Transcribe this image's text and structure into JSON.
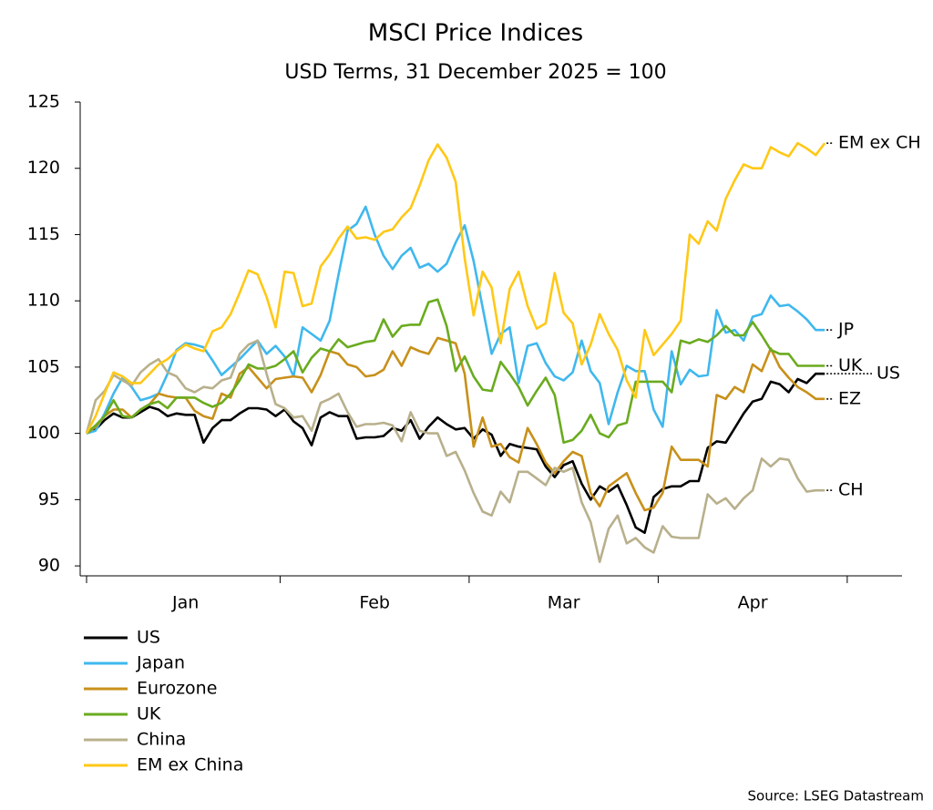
{
  "chart_data": {
    "type": "line",
    "title": "MSCI Price Indices",
    "subtitle": "USD Terms, 31 December 2025 = 100",
    "source": "Source: LSEG Datastream",
    "categories": [
      null,
      null,
      null,
      null,
      null,
      null,
      null,
      null,
      null,
      null,
      null,
      "Jan",
      null,
      null,
      null,
      null,
      null,
      null,
      null,
      null,
      null,
      null,
      null,
      null,
      null,
      null,
      null,
      null,
      null,
      null,
      null,
      null,
      "Feb",
      null,
      null,
      null,
      null,
      null,
      null,
      null,
      null,
      null,
      null,
      null,
      null,
      null,
      null,
      null,
      null,
      null,
      null,
      null,
      null,
      "Mar",
      null,
      null,
      null,
      null,
      null,
      null,
      null,
      null,
      null,
      null,
      null,
      null,
      null,
      null,
      null,
      null,
      null,
      null,
      null,
      null,
      "Apr",
      null,
      null,
      null,
      null,
      null,
      null,
      null,
      null
    ],
    "ylim": [
      89.25,
      125
    ],
    "yticks": [
      90,
      95,
      100,
      105,
      110,
      115,
      120,
      125
    ],
    "grid": false,
    "legend": "bottom-left",
    "series": [
      {
        "name": "US",
        "end_label": "US",
        "color": "#000000",
        "values": [
          100,
          100.3,
          101,
          101.5,
          101.2,
          101.2,
          101.6,
          102,
          101.8,
          101.3,
          101.5,
          101.4,
          101.4,
          99.3,
          100.4,
          101,
          101,
          101.5,
          101.9,
          101.9,
          101.8,
          101.3,
          101.8,
          100.9,
          100.4,
          99.1,
          101.2,
          101.6,
          101.3,
          101.3,
          99.6,
          99.7,
          99.7,
          99.8,
          100.4,
          100.2,
          101,
          99.6,
          100.5,
          101.2,
          100.7,
          100.3,
          100.4,
          99.6,
          100.3,
          99.9,
          98.3,
          99.2,
          99,
          98.9,
          98.8,
          97.5,
          96.7,
          97.6,
          97.9,
          96.2,
          95,
          96,
          95.6,
          96.1,
          94.6,
          92.9,
          92.5,
          95.2,
          95.8,
          96,
          96,
          96.4,
          96.4,
          98.9,
          99.4,
          99.3,
          100.4,
          101.5,
          102.4,
          102.6,
          103.9,
          103.7,
          103.1,
          104.1,
          103.8,
          104.5,
          104.5
        ]
      },
      {
        "name": "Japan",
        "end_label": "JP",
        "color": "#3fb8ee",
        "values": [
          100,
          100.2,
          101.5,
          103,
          104.2,
          103.5,
          102.5,
          102.7,
          103,
          104.5,
          106.3,
          106.8,
          106.7,
          106.5,
          105.5,
          104.4,
          105,
          105.6,
          106.3,
          107,
          106,
          106.6,
          105.8,
          104.3,
          108,
          107.5,
          107,
          108.5,
          112,
          115.3,
          115.8,
          117.1,
          115,
          113.4,
          112.4,
          113.4,
          114,
          112.5,
          112.8,
          112.2,
          112.8,
          114.4,
          115.7,
          113,
          109.5,
          106,
          107.5,
          108,
          103.8,
          106.6,
          106.8,
          105.3,
          104.3,
          104,
          104.6,
          107,
          104.7,
          103.8,
          100.7,
          103.1,
          105.1,
          104.7,
          104.7,
          101.8,
          100.5,
          106.2,
          103.7,
          104.8,
          104.3,
          104.4,
          109.3,
          107.6,
          107.8,
          107,
          108.8,
          109,
          110.4,
          109.6,
          109.7,
          109.2,
          108.6,
          107.8,
          107.8
        ]
      },
      {
        "name": "Eurozone",
        "end_label": "EZ",
        "color": "#c8901a",
        "values": [
          100,
          100.5,
          101.3,
          101.8,
          101.8,
          101.2,
          101.8,
          102.2,
          103,
          102.8,
          102.7,
          102.7,
          101.7,
          101.3,
          101.1,
          103,
          102.7,
          104.5,
          105,
          104.2,
          103.4,
          104.1,
          104.2,
          104.3,
          104.2,
          103.1,
          104.4,
          106.2,
          106,
          105.2,
          105,
          104.3,
          104.4,
          104.8,
          106.2,
          105.1,
          106.5,
          106.2,
          106,
          107.2,
          107,
          106.8,
          104.5,
          99,
          101.2,
          99,
          99.2,
          98.2,
          97.8,
          100.4,
          99.2,
          97.8,
          97,
          97.9,
          98.6,
          98.3,
          95.5,
          94.5,
          96,
          96.5,
          97,
          95.5,
          94.2,
          94.4,
          95.5,
          99,
          98,
          98,
          98,
          97.5,
          102.9,
          102.6,
          103.5,
          103.1,
          105.2,
          104.7,
          106.4,
          105,
          104.2,
          103.5,
          103.1,
          102.6,
          102.6
        ]
      },
      {
        "name": "UK",
        "end_label": "UK",
        "color": "#6aab1f",
        "values": [
          100,
          100.6,
          101.3,
          102.5,
          101.3,
          101.2,
          101.8,
          102.2,
          102.4,
          101.9,
          102.7,
          102.7,
          102.7,
          102.3,
          102,
          102.3,
          103,
          104,
          105.2,
          104.9,
          104.9,
          105.1,
          105.6,
          106.2,
          104.6,
          105.7,
          106.4,
          106.2,
          107.1,
          106.5,
          106.7,
          106.9,
          107,
          108.6,
          107.3,
          108.1,
          108.2,
          108.2,
          109.9,
          110.1,
          108.1,
          104.7,
          105.8,
          104.3,
          103.3,
          103.2,
          105.4,
          104.5,
          103.5,
          102.1,
          103.2,
          104.2,
          102.9,
          99.3,
          99.5,
          100.2,
          101.4,
          100,
          99.7,
          100.6,
          100.8,
          103.9,
          103.9,
          103.9,
          103.9,
          103.1,
          107,
          106.8,
          107.1,
          106.9,
          107.4,
          108.1,
          107.4,
          107.4,
          108.4,
          107.4,
          106.3,
          106,
          106,
          105.1,
          105.1,
          105.1,
          105.1
        ]
      },
      {
        "name": "China",
        "end_label": "CH",
        "color": "#b8b08c",
        "values": [
          100,
          102.5,
          103.2,
          104.4,
          104,
          103.6,
          104.6,
          105.2,
          105.6,
          104.6,
          104.3,
          103.4,
          103.1,
          103.5,
          103.4,
          104,
          104.2,
          106,
          106.7,
          107,
          104.5,
          102.2,
          101.9,
          101.2,
          101.3,
          100.2,
          102.3,
          102.6,
          103,
          101.6,
          100.5,
          100.7,
          100.7,
          100.8,
          100.6,
          99.4,
          101.6,
          100.2,
          100,
          100,
          98.3,
          98.6,
          97.2,
          95.5,
          94.1,
          93.8,
          95.6,
          94.8,
          97.1,
          97.1,
          96.6,
          96.1,
          97.4,
          97.1,
          97.4,
          94.8,
          93.3,
          90.3,
          92.8,
          93.8,
          91.7,
          92.1,
          91.4,
          91,
          93,
          92.2,
          92.1,
          92.1,
          92.1,
          95.4,
          94.7,
          95.1,
          94.3,
          95.1,
          95.7,
          98.1,
          97.5,
          98.1,
          98,
          96.6,
          95.6,
          95.7,
          95.7
        ]
      },
      {
        "name": "EM ex China",
        "end_label": "EM ex CH",
        "color": "#ffc816",
        "values": [
          100,
          101.3,
          103,
          104.6,
          104.3,
          103.8,
          103.8,
          104.5,
          105.2,
          105.6,
          106.2,
          106.7,
          106.4,
          106.2,
          107.7,
          108,
          109,
          110.6,
          112.3,
          112,
          110.3,
          108,
          112.2,
          112.1,
          109.6,
          109.8,
          112.6,
          113.5,
          114.7,
          115.6,
          114.7,
          114.8,
          114.6,
          115.2,
          115.4,
          116.3,
          117,
          118.7,
          120.6,
          121.8,
          120.8,
          119,
          113.2,
          108.9,
          112.2,
          111,
          106.8,
          110.9,
          112.2,
          109.6,
          107.9,
          108.3,
          112.1,
          109.1,
          108.3,
          105.2,
          106.7,
          109,
          107.5,
          106.3,
          104,
          102.7,
          107.8,
          105.9,
          106.7,
          107.5,
          108.5,
          115,
          114.3,
          116,
          115.3,
          117.7,
          119.1,
          120.3,
          120,
          120,
          121.6,
          121.2,
          120.9,
          121.9,
          121.5,
          121,
          121.9
        ]
      }
    ]
  }
}
